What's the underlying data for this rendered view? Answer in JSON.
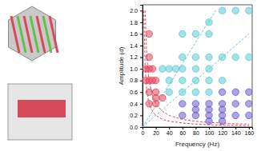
{
  "chart_data": {
    "type": "scatter",
    "x_label": "Frequency (Hz)",
    "y_label": "Amplitude (d)",
    "xlim": [
      0,
      165
    ],
    "ylim": [
      0,
      2.1
    ],
    "xticks": [
      0,
      20,
      40,
      60,
      80,
      100,
      120,
      140,
      160
    ],
    "yticks": [
      {
        "value": 0,
        "label": "0.0"
      },
      0.2,
      0.4,
      0.6,
      0.8,
      {
        "value": 1,
        "label": "1.0"
      },
      1.2,
      1.4,
      1.6,
      1.8,
      {
        "value": 2,
        "label": "2.0"
      }
    ],
    "series": [
      {
        "type": "scatter",
        "color": "#e0475a",
        "marker": "circle",
        "x": [
          10,
          10,
          5,
          10,
          15,
          5,
          10,
          15,
          20,
          10,
          20,
          20,
          30,
          20,
          10
        ],
        "values": [
          1.6,
          1.2,
          1.0,
          1.0,
          1.0,
          0.8,
          0.8,
          0.8,
          0.8,
          0.6,
          0.6,
          0.5,
          0.5,
          0.4,
          0.4
        ]
      },
      {
        "type": "scatter",
        "color": "#5bc8d8",
        "marker": "circle",
        "x": [
          120,
          140,
          160,
          100,
          60,
          80,
          100,
          60,
          80,
          100,
          120,
          140,
          160,
          30,
          40,
          50,
          60,
          80,
          100,
          40,
          60,
          80,
          100,
          120,
          40,
          60,
          80,
          100
        ],
        "values": [
          2.0,
          2.0,
          2.0,
          1.8,
          1.6,
          1.6,
          1.6,
          1.2,
          1.2,
          1.2,
          1.2,
          1.2,
          1.2,
          1.0,
          1.0,
          1.0,
          1.0,
          1.0,
          1.0,
          0.8,
          0.8,
          0.8,
          0.8,
          0.8,
          0.6,
          0.6,
          0.6,
          0.6
        ]
      },
      {
        "type": "scatter",
        "color": "#6a5acd",
        "marker": "circle",
        "x": [
          120,
          140,
          160,
          60,
          80,
          100,
          120,
          140,
          160,
          80,
          100,
          120,
          60,
          80,
          100,
          120,
          140,
          160,
          100,
          120
        ],
        "values": [
          0.6,
          0.6,
          0.6,
          0.4,
          0.4,
          0.4,
          0.4,
          0.4,
          0.4,
          0.3,
          0.3,
          0.3,
          0.2,
          0.2,
          0.2,
          0.2,
          0.2,
          0.2,
          0.1,
          0.1
        ]
      },
      {
        "type": "line",
        "color": "#e0475a",
        "line_style": "dashed",
        "x": [
          4,
          6,
          8,
          10,
          15,
          20,
          30,
          40,
          60,
          80,
          100,
          130,
          160
        ],
        "values": [
          2.0,
          1.33,
          1.0,
          0.8,
          0.53,
          0.4,
          0.27,
          0.2,
          0.13,
          0.1,
          0.08,
          0.06,
          0.05
        ]
      },
      {
        "type": "line",
        "color": "#e0475a",
        "line_style": "dashed",
        "x": [
          2,
          4,
          6,
          8,
          10,
          15,
          20,
          30,
          40,
          60,
          80,
          100,
          130,
          160
        ],
        "values": [
          2.0,
          1.0,
          0.67,
          0.5,
          0.4,
          0.27,
          0.2,
          0.13,
          0.1,
          0.07,
          0.05,
          0.04,
          0.03,
          0.025
        ]
      },
      {
        "type": "line",
        "color": "#5bc8d8",
        "line_style": "dashed",
        "x": [
          0,
          110
        ],
        "values": [
          0,
          2.0
        ]
      },
      {
        "type": "line",
        "color": "#5bc8d8",
        "line_style": "dashed",
        "x": [
          0,
          160
        ],
        "values": [
          0,
          1.6
        ]
      }
    ]
  }
}
